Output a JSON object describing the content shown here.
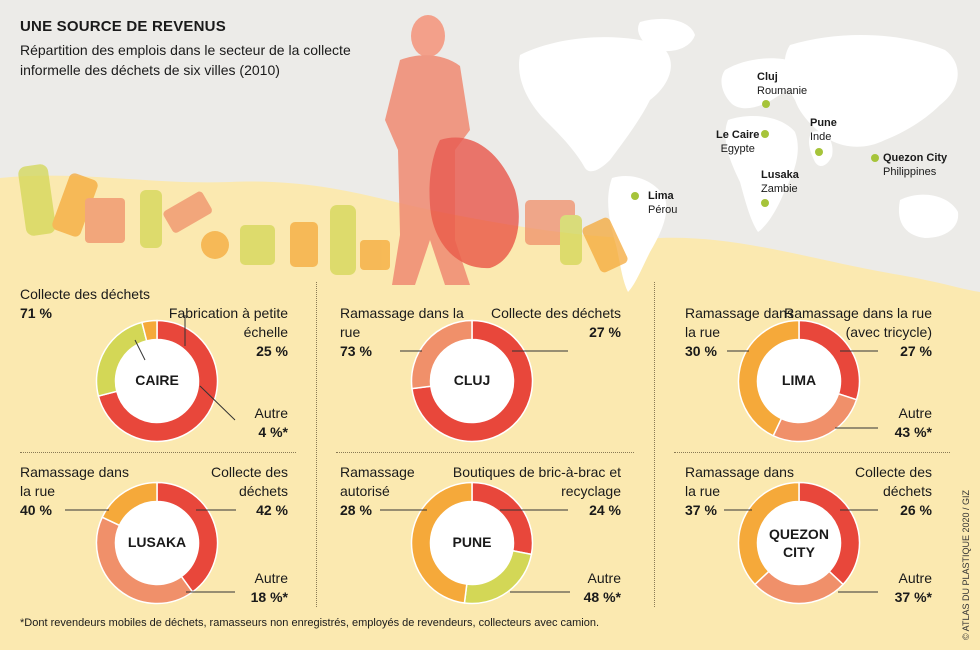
{
  "header": {
    "title": "UNE SOURCE DE REVENUS",
    "subtitle": "Répartition des emplois dans le secteur de la collecte informelle des déchets de six villes (2010)"
  },
  "map": {
    "cities": [
      {
        "name": "Cluj",
        "country": "Roumanie"
      },
      {
        "name": "Le Caire",
        "country": "Egypte"
      },
      {
        "name": "Pune",
        "country": "Inde"
      },
      {
        "name": "Quezon City",
        "country": "Philippines"
      },
      {
        "name": "Lusaka",
        "country": "Zambie"
      },
      {
        "name": "Lima",
        "country": "Pérou"
      }
    ]
  },
  "colors": {
    "red": "#e8473b",
    "salmon": "#f0906a",
    "orange": "#f5a93a",
    "lime": "#d3d756",
    "background": "#fbe9b0",
    "top_bg": "#ecebe8",
    "dot": "#a6c43a"
  },
  "chart_data": [
    {
      "type": "pie",
      "variant": "donut",
      "center_label": "CAIRE",
      "segments": [
        {
          "label": "Collecte des déchets",
          "value": 71,
          "value_label": "71 %",
          "color": "#e8473b"
        },
        {
          "label": "Fabrication à petite échelle",
          "value": 25,
          "value_label": "25 %",
          "color": "#d3d756"
        },
        {
          "label": "Autre",
          "value": 4,
          "value_label": "4 %*",
          "color": "#f5a93a"
        }
      ]
    },
    {
      "type": "pie",
      "variant": "donut",
      "center_label": "CLUJ",
      "segments": [
        {
          "label": "Ramassage dans la rue",
          "value": 73,
          "value_label": "73 %",
          "color": "#e8473b"
        },
        {
          "label": "Collecte des déchets",
          "value": 27,
          "value_label": "27 %",
          "color": "#f0906a"
        }
      ]
    },
    {
      "type": "pie",
      "variant": "donut",
      "center_label": "LIMA",
      "segments": [
        {
          "label": "Ramassage dans la rue",
          "value": 30,
          "value_label": "30 %",
          "color": "#e8473b"
        },
        {
          "label": "Ramassage dans la rue (avec tricycle)",
          "value": 27,
          "value_label": "27 %",
          "color": "#f0906a"
        },
        {
          "label": "Autre",
          "value": 43,
          "value_label": "43 %*",
          "color": "#f5a93a"
        }
      ]
    },
    {
      "type": "pie",
      "variant": "donut",
      "center_label": "LUSAKA",
      "segments": [
        {
          "label": "Ramassage dans la rue",
          "value": 40,
          "value_label": "40 %",
          "color": "#e8473b"
        },
        {
          "label": "Collecte des déchets",
          "value": 42,
          "value_label": "42 %",
          "color": "#f0906a"
        },
        {
          "label": "Autre",
          "value": 18,
          "value_label": "18 %*",
          "color": "#f5a93a"
        }
      ]
    },
    {
      "type": "pie",
      "variant": "donut",
      "center_label": "PUNE",
      "segments": [
        {
          "label": "Ramassage autorisé",
          "value": 28,
          "value_label": "28 %",
          "color": "#e8473b"
        },
        {
          "label": "Boutiques de bric-à-brac et recyclage",
          "value": 24,
          "value_label": "24 %",
          "color": "#d3d756"
        },
        {
          "label": "Autre",
          "value": 48,
          "value_label": "48 %*",
          "color": "#f5a93a"
        }
      ]
    },
    {
      "type": "pie",
      "variant": "donut",
      "center_label": "QUEZON CITY",
      "segments": [
        {
          "label": "Ramassage dans la rue",
          "value": 37,
          "value_label": "37 %",
          "color": "#e8473b"
        },
        {
          "label": "Collecte des déchets",
          "value": 26,
          "value_label": "26 %",
          "color": "#f0906a"
        },
        {
          "label": "Autre",
          "value": 37,
          "value_label": "37 %*",
          "color": "#f5a93a"
        }
      ]
    }
  ],
  "footnote": "*Dont revendeurs mobiles de déchets, ramasseurs non enregistrés, employés de revendeurs, collecteurs avec camion.",
  "credit": "© ATLAS DU PLASTIQUE 2020 / GIZ"
}
